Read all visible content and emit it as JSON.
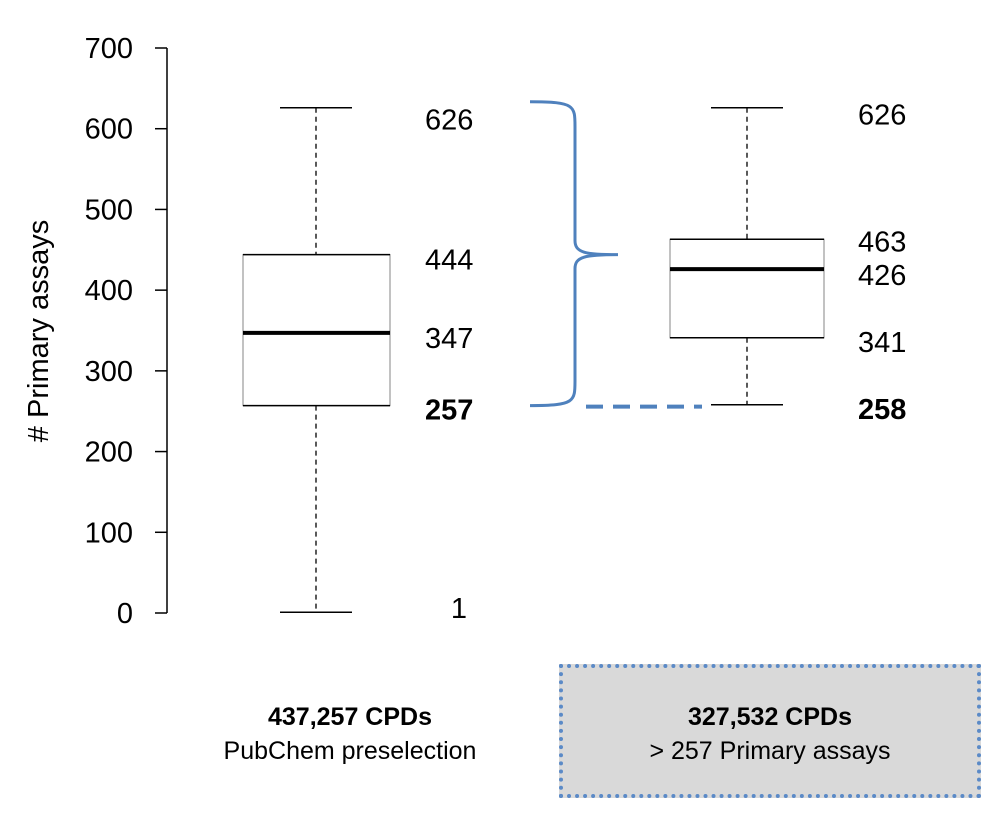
{
  "chart_data": {
    "type": "boxplot",
    "ylabel": "# Primary assays",
    "ylim": [
      0,
      700
    ],
    "yticks": [
      0,
      100,
      200,
      300,
      400,
      500,
      600,
      700
    ],
    "grid": false,
    "boxes": [
      {
        "min": 1,
        "q1": 257,
        "median": 347,
        "q3": 444,
        "max": 626,
        "labels": {
          "max": "626",
          "q3": "444",
          "median": "347",
          "q1": "257",
          "min": "1"
        },
        "caption_bold": "437,257 CPDs",
        "caption": "PubChem preselection"
      },
      {
        "min": 258,
        "q1": 341,
        "median": 426,
        "q3": 463,
        "max": 626,
        "labels": {
          "max": "626",
          "q3": "463",
          "median": "426",
          "q1": "341",
          "min": "258"
        },
        "caption_bold": "327,532 CPDs",
        "caption": "> 257 Primary assays"
      }
    ],
    "annotations": {
      "brace_color": "#4f81bd",
      "highlight_value": 257
    }
  }
}
